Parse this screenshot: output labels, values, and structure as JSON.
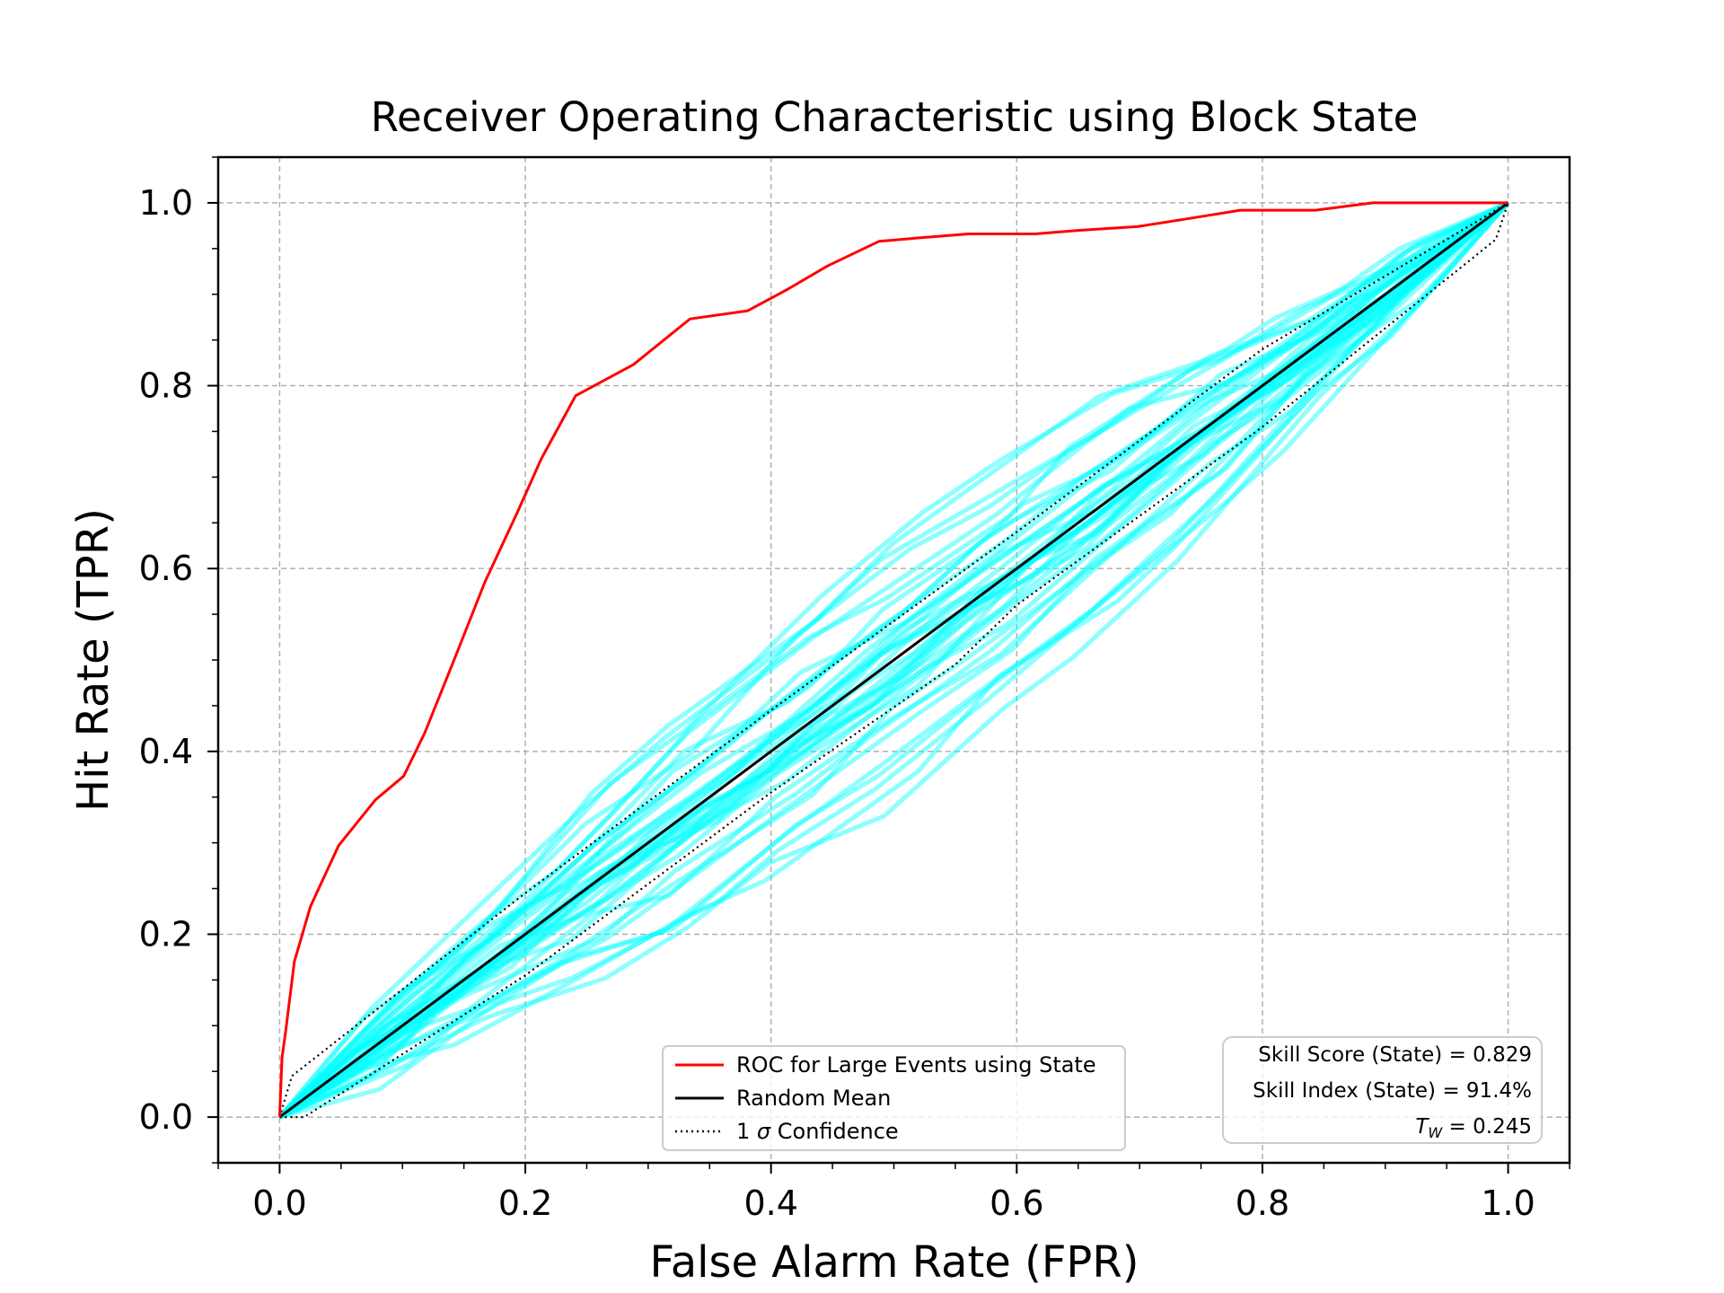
{
  "chart_data": {
    "type": "line",
    "title": "Receiver Operating Characteristic using Block State",
    "xlabel": "False Alarm Rate (FPR)",
    "ylabel": "Hit Rate (TPR)",
    "xlim": [
      -0.05,
      1.05
    ],
    "ylim": [
      -0.05,
      1.05
    ],
    "x_ticks": [
      0.0,
      0.2,
      0.4,
      0.6,
      0.8,
      1.0
    ],
    "y_ticks": [
      0.0,
      0.2,
      0.4,
      0.6,
      0.8,
      1.0
    ],
    "x_tick_labels": [
      "0.0",
      "0.2",
      "0.4",
      "0.6",
      "0.8",
      "1.0"
    ],
    "y_tick_labels": [
      "0.0",
      "0.2",
      "0.4",
      "0.6",
      "0.8",
      "1.0"
    ],
    "grid": true,
    "legend_position": "lower center",
    "series": [
      {
        "name": "ROC for Large Events using State",
        "color": "#ff0000",
        "style": "solid",
        "x": [
          0.0,
          0.001,
          0.002,
          0.005,
          0.012,
          0.025,
          0.048,
          0.078,
          0.101,
          0.118,
          0.142,
          0.167,
          0.193,
          0.213,
          0.241,
          0.288,
          0.334,
          0.381,
          0.413,
          0.446,
          0.488,
          0.523,
          0.561,
          0.615,
          0.651,
          0.698,
          0.741,
          0.782,
          0.843,
          0.89,
          0.94,
          1.0
        ],
        "y": [
          0.0,
          0.035,
          0.065,
          0.095,
          0.17,
          0.23,
          0.297,
          0.347,
          0.373,
          0.42,
          0.5,
          0.585,
          0.66,
          0.72,
          0.789,
          0.823,
          0.873,
          0.882,
          0.905,
          0.931,
          0.958,
          0.962,
          0.966,
          0.966,
          0.97,
          0.974,
          0.983,
          0.992,
          0.992,
          1.0,
          1.0,
          1.0
        ]
      },
      {
        "name": "Random Mean",
        "color": "#000000",
        "style": "solid",
        "x": [
          0.0,
          1.0
        ],
        "y": [
          0.0,
          1.0
        ]
      },
      {
        "name": "1 σ Confidence",
        "color": "#000000",
        "style": "dotted",
        "upper": {
          "x": [
            0.0,
            0.01,
            0.2,
            0.4,
            0.6,
            0.8,
            1.0
          ],
          "y": [
            0.0,
            0.045,
            0.245,
            0.445,
            0.64,
            0.84,
            1.0
          ]
        },
        "lower": {
          "x": [
            0.0,
            0.02,
            0.2,
            0.4,
            0.55,
            0.6,
            0.8,
            0.99,
            1.0
          ],
          "y": [
            0.0,
            0.0,
            0.155,
            0.355,
            0.495,
            0.56,
            0.755,
            0.96,
            1.0
          ]
        }
      }
    ],
    "random_trials": {
      "color": "#00ffff",
      "opacity": 0.45,
      "count": 40,
      "spread_sd": 0.045
    },
    "legend": {
      "entries": [
        {
          "label": "ROC for Large Events using State",
          "color": "#ff0000",
          "style": "solid"
        },
        {
          "label": "Random Mean",
          "color": "#000000",
          "style": "solid"
        },
        {
          "label_prefix": "1 ",
          "label_symbol": "σ",
          "label_suffix": " Confidence",
          "color": "#000000",
          "style": "dotted"
        }
      ]
    },
    "annotations": {
      "skill_score": "Skill Score (State) = 0.829",
      "skill_index": "Skill Index (State) = 91.4%",
      "tw_symbol": "T",
      "tw_subscript": "W",
      "tw_value": " = 0.245"
    }
  }
}
